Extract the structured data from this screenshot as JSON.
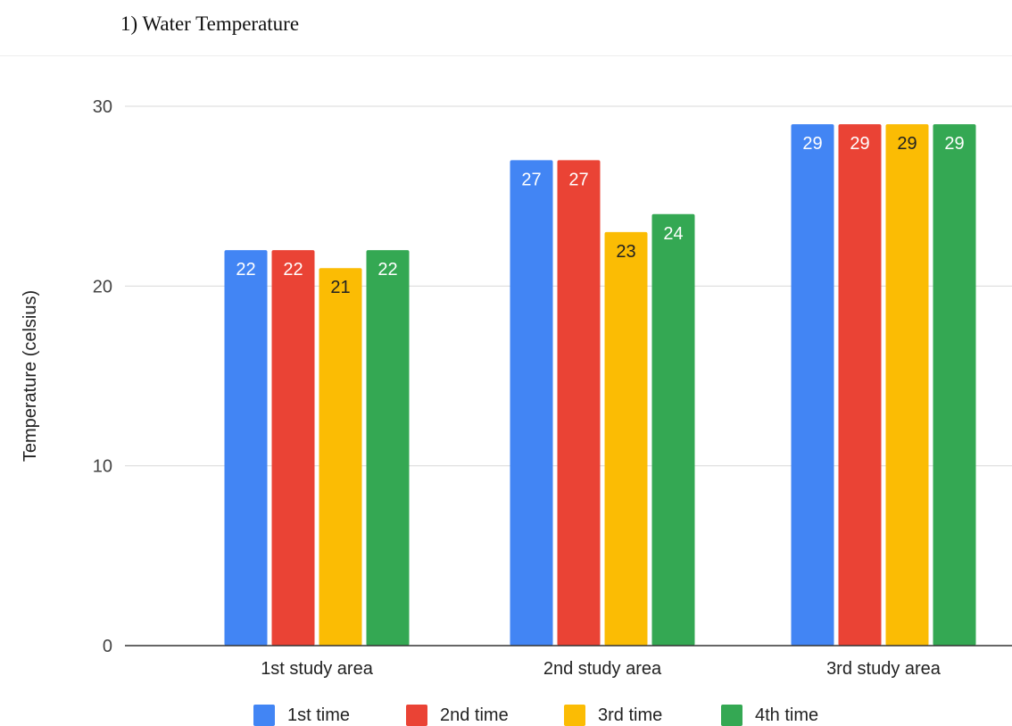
{
  "heading": "1) Water Temperature",
  "chart_data": {
    "type": "bar",
    "title": "",
    "xlabel": "",
    "ylabel": "Temperature (celsius)",
    "ylim": [
      0,
      30
    ],
    "yticks": [
      0,
      10,
      20,
      30
    ],
    "grid": true,
    "legend_position": "bottom",
    "categories": [
      "1st study area",
      "2nd study area",
      "3rd study area"
    ],
    "series": [
      {
        "name": "1st time",
        "color": "#4285f4",
        "label_color": "#ffffff",
        "values": [
          22,
          27,
          29
        ]
      },
      {
        "name": "2nd time",
        "color": "#ea4335",
        "label_color": "#ffffff",
        "values": [
          22,
          27,
          29
        ]
      },
      {
        "name": "3rd time",
        "color": "#fbbc04",
        "label_color": "#222222",
        "values": [
          21,
          23,
          29
        ]
      },
      {
        "name": "4th time",
        "color": "#34a853",
        "label_color": "#ffffff",
        "values": [
          22,
          24,
          29
        ]
      }
    ]
  }
}
